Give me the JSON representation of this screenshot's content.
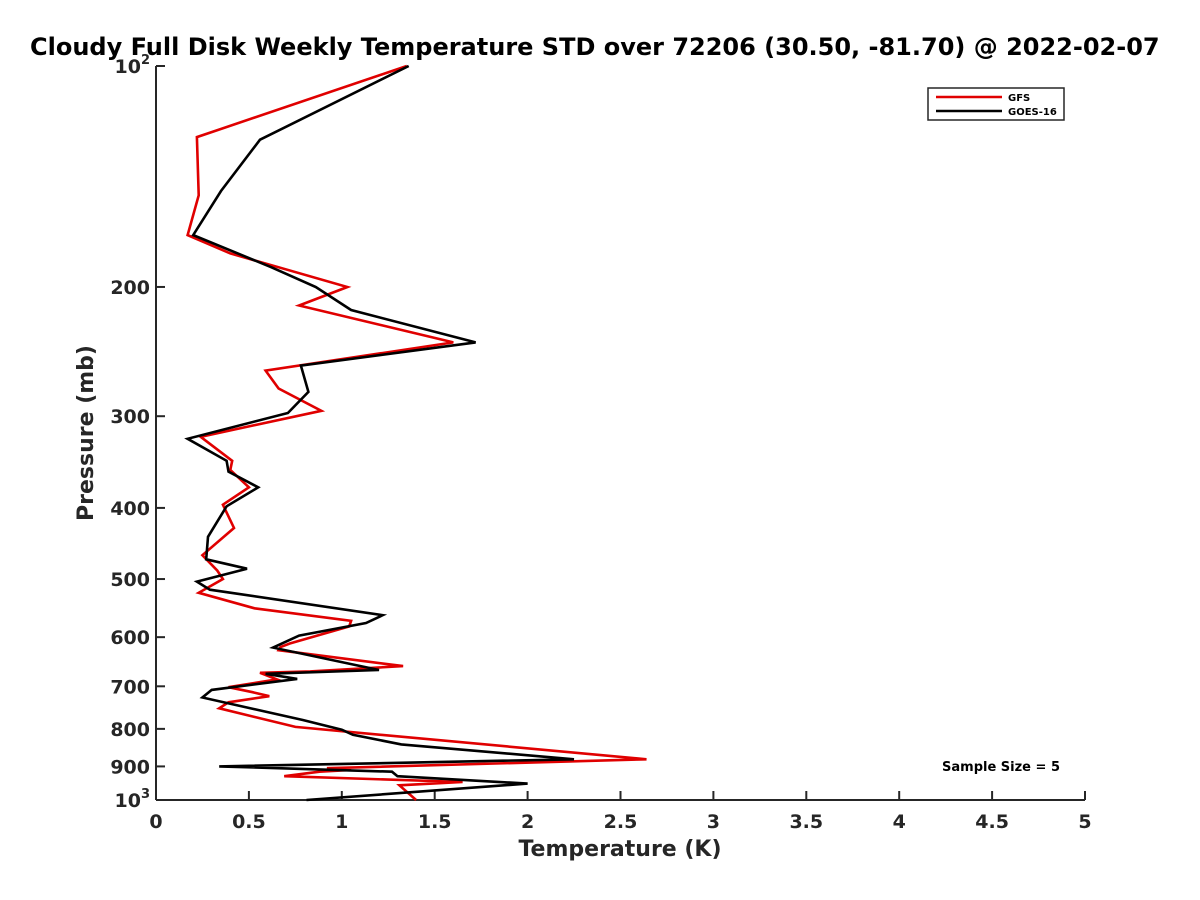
{
  "chart_data": {
    "type": "line",
    "title": "Cloudy Full Disk Weekly Temperature STD over 72206 (30.50, -81.70) @ 2022-02-07",
    "xlabel": "Temperature (K)",
    "ylabel": "Pressure (mb)",
    "xlim": [
      0,
      5
    ],
    "ylim": [
      100,
      1000
    ],
    "yscale": "log",
    "yreversed": true,
    "grid": false,
    "x_ticks": [
      {
        "value": 0,
        "label": "0"
      },
      {
        "value": 0.5,
        "label": "0.5"
      },
      {
        "value": 1,
        "label": "1"
      },
      {
        "value": 1.5,
        "label": "1.5"
      },
      {
        "value": 2,
        "label": "2"
      },
      {
        "value": 2.5,
        "label": "2.5"
      },
      {
        "value": 3,
        "label": "3"
      },
      {
        "value": 3.5,
        "label": "3.5"
      },
      {
        "value": 4,
        "label": "4"
      },
      {
        "value": 4.5,
        "label": "4.5"
      },
      {
        "value": 5,
        "label": "5"
      }
    ],
    "y_ticks": [
      {
        "value": 100,
        "base": "10",
        "exp": "2"
      },
      {
        "value": 200,
        "label": "200"
      },
      {
        "value": 300,
        "label": "300"
      },
      {
        "value": 400,
        "label": "400"
      },
      {
        "value": 500,
        "label": "500"
      },
      {
        "value": 600,
        "label": "600"
      },
      {
        "value": 700,
        "label": "700"
      },
      {
        "value": 800,
        "label": "800"
      },
      {
        "value": 900,
        "label": "900"
      },
      {
        "value": 1000,
        "base": "10",
        "exp": "3"
      }
    ],
    "legend_position": "top-right",
    "annotation": "Sample Size = 5",
    "series": [
      {
        "name": "GFS",
        "color": "#e00000",
        "points": [
          [
            1.35,
            100
          ],
          [
            0.22,
            125
          ],
          [
            0.23,
            150
          ],
          [
            0.17,
            170
          ],
          [
            0.4,
            180
          ],
          [
            1.03,
            200
          ],
          [
            0.77,
            212
          ],
          [
            1.6,
            238
          ],
          [
            0.59,
            260
          ],
          [
            0.66,
            275
          ],
          [
            0.89,
            295
          ],
          [
            0.24,
            320
          ],
          [
            0.41,
            345
          ],
          [
            0.4,
            355
          ],
          [
            0.5,
            375
          ],
          [
            0.36,
            396
          ],
          [
            0.42,
            426
          ],
          [
            0.25,
            464
          ],
          [
            0.33,
            487
          ],
          [
            0.36,
            500
          ],
          [
            0.23,
            522
          ],
          [
            0.53,
            548
          ],
          [
            1.05,
            570
          ],
          [
            1.04,
            580
          ],
          [
            0.72,
            612
          ],
          [
            0.67,
            619
          ],
          [
            0.66,
            625
          ],
          [
            1.33,
            657
          ],
          [
            0.83,
            668
          ],
          [
            0.56,
            671
          ],
          [
            0.65,
            685
          ],
          [
            0.39,
            702
          ],
          [
            0.52,
            713
          ],
          [
            0.61,
            722
          ],
          [
            0.39,
            736
          ],
          [
            0.34,
            750
          ],
          [
            0.75,
            795
          ],
          [
            2.64,
            880
          ],
          [
            0.92,
            905
          ],
          [
            1.05,
            910
          ],
          [
            0.88,
            915
          ],
          [
            0.69,
            928
          ],
          [
            1.65,
            945
          ],
          [
            1.31,
            955
          ],
          [
            1.4,
            1000
          ]
        ]
      },
      {
        "name": "GOES-16",
        "color": "#000000",
        "points": [
          [
            1.36,
            100
          ],
          [
            0.56,
            126
          ],
          [
            0.35,
            148
          ],
          [
            0.2,
            170
          ],
          [
            0.62,
            188
          ],
          [
            0.86,
            200
          ],
          [
            1.05,
            215
          ],
          [
            1.72,
            238
          ],
          [
            0.78,
            256
          ],
          [
            0.82,
            278
          ],
          [
            0.71,
            297
          ],
          [
            0.17,
            322
          ],
          [
            0.38,
            345
          ],
          [
            0.39,
            357
          ],
          [
            0.55,
            375
          ],
          [
            0.38,
            398
          ],
          [
            0.28,
            438
          ],
          [
            0.27,
            470
          ],
          [
            0.49,
            484
          ],
          [
            0.22,
            504
          ],
          [
            0.29,
            517
          ],
          [
            1.22,
            560
          ],
          [
            1.13,
            574
          ],
          [
            0.77,
            597
          ],
          [
            0.63,
            620
          ],
          [
            1.2,
            665
          ],
          [
            0.59,
            673
          ],
          [
            0.76,
            684
          ],
          [
            0.3,
            708
          ],
          [
            0.25,
            725
          ],
          [
            0.79,
            778
          ],
          [
            1.0,
            802
          ],
          [
            1.06,
            815
          ],
          [
            1.32,
            840
          ],
          [
            2.25,
            880
          ],
          [
            0.34,
            900
          ],
          [
            1.27,
            915
          ],
          [
            1.3,
            928
          ],
          [
            2.0,
            950
          ],
          [
            0.81,
            1000
          ]
        ]
      }
    ]
  }
}
